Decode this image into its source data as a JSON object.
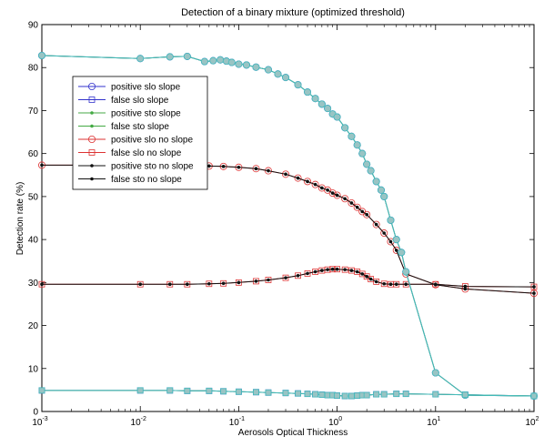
{
  "chart_data": {
    "type": "line",
    "title": "Detection of a binary mixture (optimized threshold)",
    "xlabel": "Aerosols Optical Thickness",
    "ylabel": "Detection rate (%)",
    "x_scale": "log",
    "xlim": [
      0.001,
      100
    ],
    "ylim": [
      0,
      90
    ],
    "x_ticks": [
      {
        "value": 0.001,
        "base": "10",
        "exp": "-3"
      },
      {
        "value": 0.01,
        "base": "10",
        "exp": "-2"
      },
      {
        "value": 0.1,
        "base": "10",
        "exp": "-1"
      },
      {
        "value": 1,
        "base": "10",
        "exp": "0"
      },
      {
        "value": 10,
        "base": "10",
        "exp": "1"
      },
      {
        "value": 100,
        "base": "10",
        "exp": "2"
      }
    ],
    "y_ticks": [
      0,
      10,
      20,
      30,
      40,
      50,
      60,
      70,
      80,
      90
    ],
    "grid": false,
    "legend_position": "upper-left",
    "series": [
      {
        "name": "positive slo slope",
        "color": "#3333cc",
        "marker": "circle",
        "x": [
          0.001,
          0.01,
          0.02,
          0.03,
          0.045,
          0.055,
          0.065,
          0.075,
          0.085,
          0.1,
          0.12,
          0.15,
          0.2,
          0.25,
          0.3,
          0.4,
          0.5,
          0.6,
          0.7,
          0.8,
          0.9,
          1,
          1.2,
          1.4,
          1.6,
          1.8,
          2,
          2.2,
          2.5,
          2.8,
          3,
          3.5,
          4,
          4.5,
          5,
          10,
          20,
          100
        ],
        "y": [
          82.8,
          82.1,
          82.5,
          82.6,
          81.4,
          81.6,
          81.8,
          81.5,
          81.2,
          80.8,
          80.6,
          80.1,
          79.5,
          78.5,
          77.7,
          76,
          74.3,
          72.8,
          71.5,
          70.5,
          69.2,
          68.5,
          66,
          64,
          62,
          60,
          57.5,
          56,
          53.5,
          51.5,
          50,
          44.5,
          40,
          37,
          32.5,
          9,
          3.8,
          3.6
        ]
      },
      {
        "name": "false slo slope",
        "color": "#3333cc",
        "marker": "square",
        "x": [
          0.001,
          0.01,
          0.02,
          0.03,
          0.05,
          0.07,
          0.1,
          0.15,
          0.2,
          0.3,
          0.4,
          0.5,
          0.6,
          0.7,
          0.8,
          0.9,
          1,
          1.2,
          1.4,
          1.6,
          1.8,
          2,
          2.5,
          3,
          4,
          5,
          10,
          20,
          100
        ],
        "y": [
          4.9,
          4.9,
          4.9,
          4.8,
          4.8,
          4.7,
          4.6,
          4.5,
          4.4,
          4.3,
          4.2,
          4.1,
          4,
          3.9,
          3.8,
          3.8,
          3.7,
          3.6,
          3.6,
          3.7,
          3.8,
          3.8,
          4,
          4,
          4.1,
          4.1,
          4,
          3.9,
          3.6
        ]
      },
      {
        "name": "positive sto slope",
        "color": "#44aa44",
        "marker": "dot",
        "x": [
          0.001,
          0.01,
          0.02,
          0.03,
          0.045,
          0.055,
          0.065,
          0.075,
          0.085,
          0.1,
          0.12,
          0.15,
          0.2,
          0.25,
          0.3,
          0.4,
          0.5,
          0.6,
          0.7,
          0.8,
          0.9,
          1,
          1.2,
          1.4,
          1.6,
          1.8,
          2,
          2.2,
          2.5,
          2.8,
          3,
          3.5,
          4,
          4.5,
          5,
          10,
          20,
          100
        ],
        "y": [
          82.8,
          82.1,
          82.5,
          82.6,
          81.4,
          81.6,
          81.8,
          81.5,
          81.2,
          80.8,
          80.6,
          80.1,
          79.5,
          78.5,
          77.7,
          76,
          74.3,
          72.8,
          71.5,
          70.5,
          69.2,
          68.5,
          66,
          64,
          62,
          60,
          57.5,
          56,
          53.5,
          51.5,
          50,
          44.5,
          40,
          37,
          32.5,
          9,
          3.8,
          3.6
        ]
      },
      {
        "name": "false sto slope",
        "color": "#44aa44",
        "marker": "dot",
        "x": [
          0.001,
          0.01,
          0.02,
          0.03,
          0.05,
          0.07,
          0.1,
          0.15,
          0.2,
          0.3,
          0.4,
          0.5,
          0.6,
          0.7,
          0.8,
          0.9,
          1,
          1.2,
          1.4,
          1.6,
          1.8,
          2,
          2.5,
          3,
          4,
          5,
          10,
          20,
          100
        ],
        "y": [
          4.9,
          4.9,
          4.9,
          4.8,
          4.8,
          4.7,
          4.6,
          4.5,
          4.4,
          4.3,
          4.2,
          4.1,
          4,
          3.9,
          3.8,
          3.8,
          3.7,
          3.6,
          3.6,
          3.7,
          3.8,
          3.8,
          4,
          4,
          4.1,
          4.1,
          4,
          3.9,
          3.6
        ]
      },
      {
        "name": "positive slo no slope",
        "color": "#dd3333",
        "marker": "circle",
        "x": [
          0.001,
          0.01,
          0.02,
          0.03,
          0.05,
          0.07,
          0.1,
          0.15,
          0.2,
          0.3,
          0.4,
          0.5,
          0.6,
          0.7,
          0.8,
          0.9,
          1,
          1.2,
          1.4,
          1.6,
          1.8,
          2,
          2.5,
          3,
          3.5,
          4,
          5,
          10,
          20,
          100
        ],
        "y": [
          57.3,
          57.3,
          57.3,
          57.2,
          57.1,
          57,
          56.8,
          56.5,
          56,
          55.2,
          54.3,
          53.5,
          52.8,
          52,
          51.5,
          50.8,
          50.3,
          49.5,
          48.5,
          47.5,
          46.5,
          45.8,
          43.5,
          41.5,
          39.5,
          37.5,
          32,
          29.5,
          28.5,
          27.5
        ]
      },
      {
        "name": "false slo no slope",
        "color": "#dd3333",
        "marker": "square",
        "x": [
          0.001,
          0.01,
          0.02,
          0.03,
          0.05,
          0.07,
          0.1,
          0.15,
          0.2,
          0.3,
          0.4,
          0.5,
          0.6,
          0.7,
          0.8,
          0.9,
          1,
          1.2,
          1.4,
          1.6,
          1.8,
          2,
          2.2,
          2.5,
          3,
          3.5,
          4,
          5,
          10,
          20,
          100
        ],
        "y": [
          29.6,
          29.6,
          29.6,
          29.6,
          29.7,
          29.8,
          30,
          30.3,
          30.6,
          31.1,
          31.6,
          32.1,
          32.5,
          32.8,
          33,
          33.1,
          33.1,
          33,
          32.8,
          32.5,
          32,
          31.4,
          30.8,
          30.2,
          29.7,
          29.6,
          29.6,
          29.6,
          29.6,
          29.1,
          29
        ]
      },
      {
        "name": "positive sto no slope",
        "color": "#111111",
        "marker": "dot",
        "x": [
          0.001,
          0.01,
          0.02,
          0.03,
          0.05,
          0.07,
          0.1,
          0.15,
          0.2,
          0.3,
          0.4,
          0.5,
          0.6,
          0.7,
          0.8,
          0.9,
          1,
          1.2,
          1.4,
          1.6,
          1.8,
          2,
          2.5,
          3,
          3.5,
          4,
          5,
          10,
          20,
          100
        ],
        "y": [
          57.3,
          57.3,
          57.3,
          57.2,
          57.1,
          57,
          56.8,
          56.5,
          56,
          55.2,
          54.3,
          53.5,
          52.8,
          52,
          51.5,
          50.8,
          50.3,
          49.5,
          48.5,
          47.5,
          46.5,
          45.8,
          43.5,
          41.5,
          39.5,
          37.5,
          32,
          29.5,
          28.5,
          27.5
        ]
      },
      {
        "name": "false sto no slope",
        "color": "#111111",
        "marker": "dot",
        "x": [
          0.001,
          0.01,
          0.02,
          0.03,
          0.05,
          0.07,
          0.1,
          0.15,
          0.2,
          0.3,
          0.4,
          0.5,
          0.6,
          0.7,
          0.8,
          0.9,
          1,
          1.2,
          1.4,
          1.6,
          1.8,
          2,
          2.2,
          2.5,
          3,
          3.5,
          4,
          5,
          10,
          20,
          100
        ],
        "y": [
          29.6,
          29.6,
          29.6,
          29.6,
          29.7,
          29.8,
          30,
          30.3,
          30.6,
          31.1,
          31.6,
          32.1,
          32.5,
          32.8,
          33,
          33.1,
          33.1,
          33,
          32.8,
          32.5,
          32,
          31.4,
          30.8,
          30.2,
          29.7,
          29.6,
          29.6,
          29.6,
          29.6,
          29.1,
          29
        ]
      },
      {
        "name": "",
        "color": "#44bbbb",
        "marker": "circle-filled",
        "fill": "#99c4c4",
        "in_legend": false,
        "x": [
          0.001,
          0.01,
          0.02,
          0.03,
          0.045,
          0.055,
          0.065,
          0.075,
          0.085,
          0.1,
          0.12,
          0.15,
          0.2,
          0.25,
          0.3,
          0.4,
          0.5,
          0.6,
          0.7,
          0.8,
          0.9,
          1,
          1.2,
          1.4,
          1.6,
          1.8,
          2,
          2.2,
          2.5,
          2.8,
          3,
          3.5,
          4,
          4.5,
          5,
          10,
          20,
          100
        ],
        "y": [
          82.8,
          82.1,
          82.5,
          82.6,
          81.4,
          81.6,
          81.8,
          81.5,
          81.2,
          80.8,
          80.6,
          80.1,
          79.5,
          78.5,
          77.7,
          76,
          74.3,
          72.8,
          71.5,
          70.5,
          69.2,
          68.5,
          66,
          64,
          62,
          60,
          57.5,
          56,
          53.5,
          51.5,
          50,
          44.5,
          40,
          37,
          32.5,
          9,
          3.8,
          3.6
        ]
      },
      {
        "name": "",
        "color": "#44bbbb",
        "marker": "square-filled",
        "fill": "#99c4c4",
        "in_legend": false,
        "x": [
          0.001,
          0.01,
          0.02,
          0.03,
          0.05,
          0.07,
          0.1,
          0.15,
          0.2,
          0.3,
          0.4,
          0.5,
          0.6,
          0.7,
          0.8,
          0.9,
          1,
          1.2,
          1.4,
          1.6,
          1.8,
          2,
          2.5,
          3,
          4,
          5,
          10,
          20,
          100
        ],
        "y": [
          4.9,
          4.9,
          4.9,
          4.8,
          4.8,
          4.7,
          4.6,
          4.5,
          4.4,
          4.3,
          4.2,
          4.1,
          4,
          3.9,
          3.8,
          3.8,
          3.7,
          3.6,
          3.6,
          3.7,
          3.8,
          3.8,
          4,
          4,
          4.1,
          4.1,
          4,
          3.9,
          3.6
        ]
      }
    ]
  }
}
